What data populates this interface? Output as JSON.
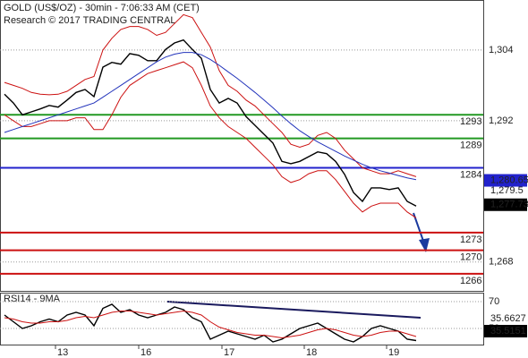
{
  "chart_data": [
    {
      "type": "line",
      "title": "GOLD (US$/OZ) - 30min - 7:06:33 AM (CET)",
      "subtitle": "Research © 2017 TRADING CENTRAL",
      "x": [
        1,
        3,
        5,
        7,
        9,
        11,
        13,
        15,
        17,
        19,
        21,
        23,
        25,
        27,
        29,
        31,
        33,
        35,
        37,
        39,
        41,
        43,
        45,
        47,
        49,
        51,
        53,
        55,
        57,
        59,
        61,
        63,
        65,
        67,
        69,
        71,
        73,
        75,
        77,
        79,
        81,
        83,
        85,
        87,
        89,
        91,
        93
      ],
      "series": [
        {
          "color": "#000000",
          "values": [
            1296.5,
            1295.0,
            1293.0,
            1293.5,
            1294.0,
            1294.6,
            1294.3,
            1295.5,
            1296.8,
            1297.3,
            1296.1,
            1301.1,
            1301.9,
            1301.6,
            1303.4,
            1303.1,
            1302.2,
            1302.2,
            1304.1,
            1305.2,
            1305.7,
            1304.1,
            1302.6,
            1297.3,
            1295.0,
            1295.8,
            1295.0,
            1292.7,
            1291.2,
            1289.7,
            1288.2,
            1285.1,
            1284.7,
            1285.1,
            1285.9,
            1286.7,
            1286.4,
            1285.1,
            1282.9,
            1279.8,
            1278.3,
            1280.6,
            1280.6,
            1280.3,
            1280.6,
            1278.3,
            1277.5
          ]
        },
        {
          "color": "#cc1111",
          "values": [
            1298.5,
            1298.0,
            1297.5,
            1296.8,
            1296.5,
            1296.4,
            1296.5,
            1297.0,
            1298.0,
            1299.0,
            1299.5,
            1304.0,
            1306.0,
            1307.5,
            1308.0,
            1308.0,
            1307.5,
            1306.5,
            1307.0,
            1308.5,
            1310.0,
            1309.5,
            1307.0,
            1304.5,
            1300.5,
            1298.0,
            1297.0,
            1295.5,
            1294.5,
            1293.0,
            1291.5,
            1290.0,
            1288.0,
            1287.5,
            1288.0,
            1289.5,
            1290.0,
            1289.0,
            1287.0,
            1285.5,
            1284.0,
            1283.5,
            1283.0,
            1283.0,
            1283.5,
            1283.0,
            1282.5
          ]
        },
        {
          "color": "#cc1111",
          "values": [
            1293.0,
            1292.0,
            1291.0,
            1291.0,
            1291.5,
            1292.0,
            1292.0,
            1292.0,
            1292.5,
            1292.5,
            1290.5,
            1290.5,
            1293.0,
            1296.0,
            1298.0,
            1299.0,
            1300.0,
            1300.5,
            1301.0,
            1301.5,
            1302.0,
            1301.0,
            1298.0,
            1294.5,
            1292.5,
            1291.0,
            1290.0,
            1289.0,
            1287.5,
            1286.0,
            1284.5,
            1282.5,
            1281.5,
            1282.0,
            1283.0,
            1283.5,
            1283.5,
            1282.0,
            1280.0,
            1278.0,
            1276.5,
            1277.5,
            1278.0,
            1278.0,
            1278.0,
            1276.5,
            1275.5
          ]
        },
        {
          "color": "#2233bb",
          "values": [
            1290.0,
            1290.5,
            1291.0,
            1291.5,
            1292.0,
            1292.5,
            1293.0,
            1293.5,
            1294.0,
            1294.5,
            1295.0,
            1296.0,
            1297.0,
            1298.0,
            1299.0,
            1300.0,
            1301.0,
            1302.0,
            1302.8,
            1303.3,
            1303.6,
            1303.6,
            1303.2,
            1302.4,
            1301.4,
            1300.3,
            1299.2,
            1298.0,
            1296.8,
            1295.5,
            1294.2,
            1292.8,
            1291.5,
            1290.3,
            1289.3,
            1288.4,
            1287.6,
            1286.8,
            1286.0,
            1285.3,
            1284.6,
            1284.0,
            1283.5,
            1283.1,
            1282.7,
            1282.3,
            1282.0
          ]
        }
      ],
      "xlim": [
        0,
        108
      ],
      "ylim": [
        1263.1,
        1312.5
      ],
      "yticks": [
        {
          "value": 1304,
          "label": "1,304"
        },
        {
          "value": 1292,
          "label": "1,292"
        },
        {
          "value": 1268,
          "label": "1,268"
        }
      ],
      "grid": true,
      "levels": [
        {
          "value": 1293,
          "color": "#229922"
        },
        {
          "value": 1289,
          "color": "#229922"
        },
        {
          "value": 1284,
          "color": "#2222cc"
        },
        {
          "value": 1273,
          "color": "#cc1111"
        },
        {
          "value": 1270,
          "color": "#cc1111"
        },
        {
          "value": 1266,
          "color": "#cc1111"
        }
      ],
      "price_tags": [
        {
          "value": 1280.65,
          "label": "1,280.65",
          "color": "#2222cc",
          "boxed": true
        },
        {
          "value": 1279.5,
          "label": "1,279.5",
          "color": "#cc1111",
          "boxed": false
        },
        {
          "value": 1277.73,
          "label": "1,277.73",
          "color": "#000000",
          "boxed": true
        }
      ]
    },
    {
      "type": "line",
      "title": "RSI14 - 9MA",
      "x": [
        1,
        3,
        5,
        7,
        9,
        11,
        13,
        15,
        17,
        19,
        21,
        23,
        25,
        27,
        29,
        31,
        33,
        35,
        37,
        39,
        41,
        43,
        45,
        47,
        49,
        51,
        53,
        55,
        57,
        59,
        61,
        63,
        65,
        67,
        69,
        71,
        73,
        75,
        77,
        79,
        81,
        83,
        85,
        87,
        89,
        91,
        93
      ],
      "series": [
        {
          "color": "#000000",
          "values": [
            60,
            55,
            50,
            52,
            55,
            57,
            55,
            60,
            62,
            60,
            52,
            65,
            68,
            62,
            64,
            60,
            58,
            60,
            62,
            66,
            64,
            58,
            55,
            42,
            45,
            48,
            46,
            44,
            42,
            45,
            40,
            42,
            46,
            50,
            52,
            54,
            50,
            46,
            42,
            40,
            44,
            50,
            52,
            50,
            48,
            42,
            41
          ]
        },
        {
          "color": "#cc1111",
          "values": [
            58,
            57,
            55,
            54,
            54,
            55,
            55,
            56,
            58,
            59,
            58,
            60,
            62,
            63,
            63,
            62,
            61,
            60,
            61,
            62,
            63,
            62,
            60,
            55,
            51,
            49,
            47,
            46,
            45,
            45,
            44,
            43,
            44,
            45,
            47,
            49,
            50,
            49,
            47,
            45,
            44,
            45,
            47,
            48,
            48,
            46,
            44
          ]
        }
      ],
      "xlim": [
        0,
        108
      ],
      "ylim": [
        38,
        76.7
      ],
      "yticks": [
        70,
        50
      ],
      "grid": true,
      "xticks": [
        {
          "value": 12.4,
          "label": "13"
        },
        {
          "value": 31,
          "label": "16"
        },
        {
          "value": 49.6,
          "label": "17"
        },
        {
          "value": 68,
          "label": "18"
        },
        {
          "value": 86.4,
          "label": "19"
        }
      ],
      "tags": [
        {
          "value": 35.6627,
          "color": "#cc1111",
          "boxed": false
        },
        {
          "value": 35.5151,
          "color": "#000000",
          "boxed": true
        }
      ]
    }
  ]
}
